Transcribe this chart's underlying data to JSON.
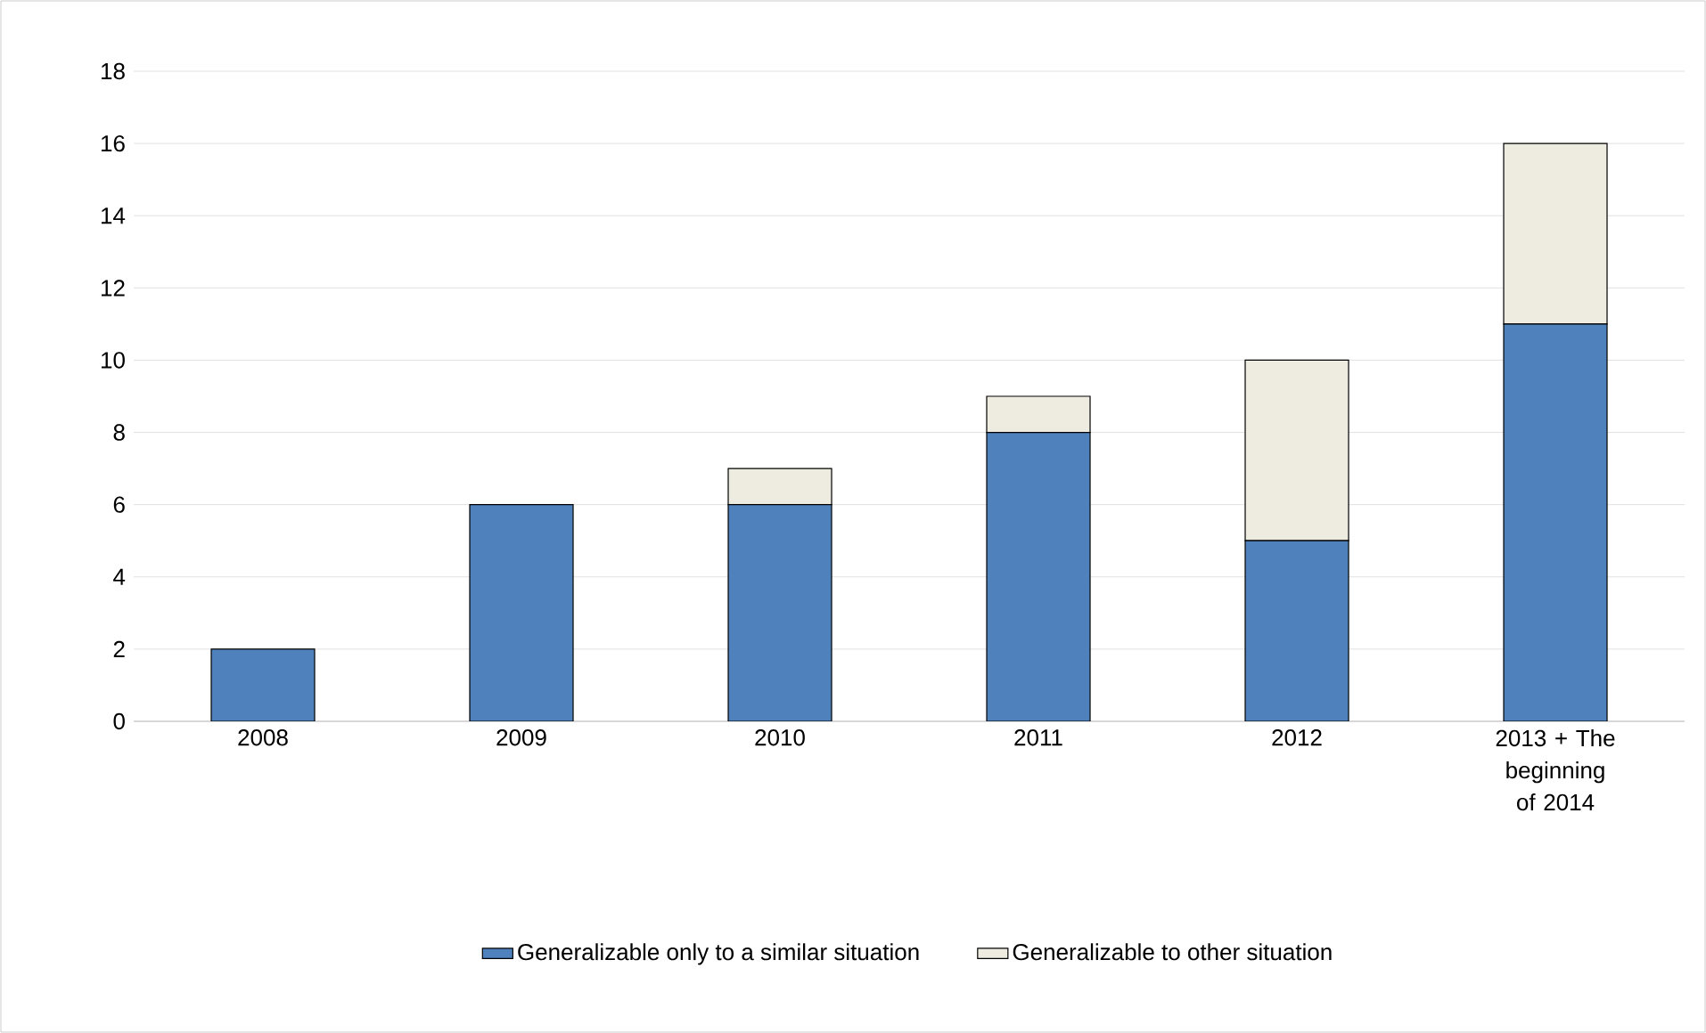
{
  "chart_data": {
    "type": "bar",
    "stacked": true,
    "categories": [
      "2008",
      "2009",
      "2010",
      "2011",
      "2012",
      "2013 + The beginning of 2014"
    ],
    "series": [
      {
        "name": "Generalizable only to a similar situation",
        "color": "#4f81bd",
        "values": [
          2,
          6,
          6,
          8,
          5,
          11
        ]
      },
      {
        "name": "Generalizable to other situation",
        "color": "#eeece1",
        "values": [
          0,
          0,
          1,
          1,
          5,
          5
        ]
      }
    ],
    "ylim": [
      0,
      18
    ],
    "yticks": [
      0,
      2,
      4,
      6,
      8,
      10,
      12,
      14,
      16,
      18
    ],
    "grid": "y",
    "legend": "bottom"
  }
}
